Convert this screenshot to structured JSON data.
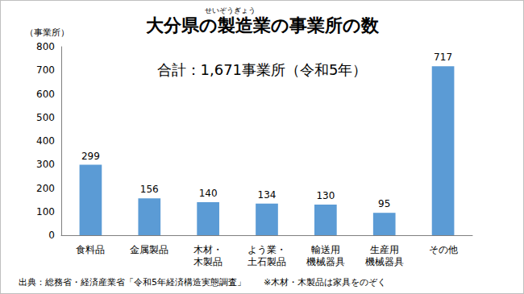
{
  "chart_data": {
    "type": "bar",
    "title": "大分県の製造業の事業所の数",
    "title_ruby": "せいぞうぎょう",
    "y_label": "（事業所）",
    "annotation": "合計：1,671事業所（令和5年）",
    "source": "出典：総務省・経済産業省「令和5年経済構造実態調査」　　※木材・木製品は家具をのぞく",
    "categories": [
      "食料品",
      "金属製品",
      "木材・\n木製品",
      "よう業・\n土石製品",
      "輸送用\n機械器具",
      "生産用\n機械器具",
      "その他"
    ],
    "values": [
      299,
      156,
      140,
      134,
      130,
      95,
      717
    ],
    "color": "#5b9bd5",
    "ylim": [
      0,
      800
    ],
    "yticks": [
      0,
      100,
      200,
      300,
      400,
      500,
      600,
      700,
      800
    ],
    "grid": false,
    "data_labels": true
  }
}
